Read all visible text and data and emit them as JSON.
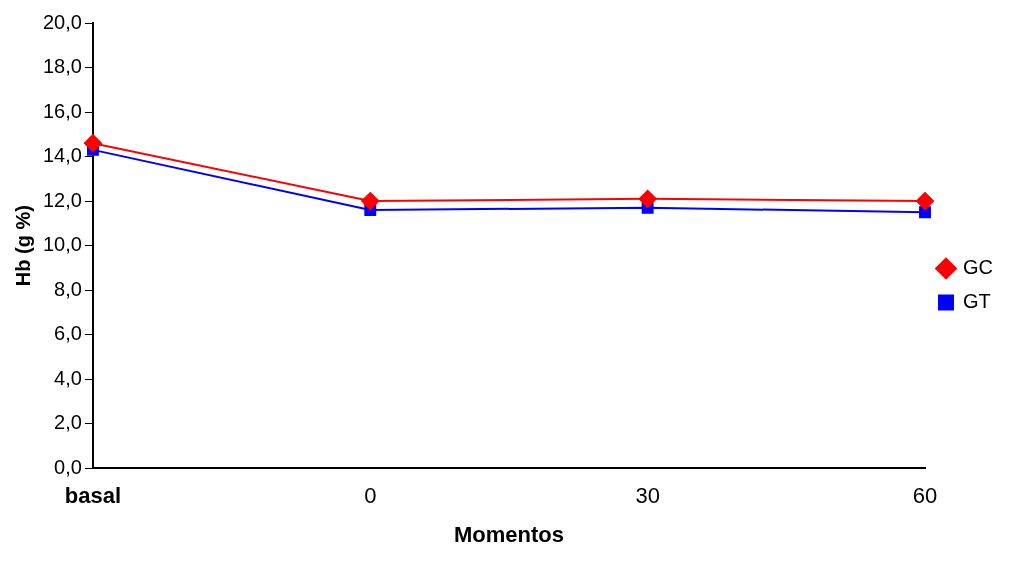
{
  "chart_data": {
    "type": "line",
    "xlabel": "Momentos",
    "ylabel": "Hb (g %)",
    "categories": [
      "basal",
      "0",
      "30",
      "60"
    ],
    "series": [
      {
        "name": "GC",
        "color": "#ff0000",
        "marker": "diamond",
        "values": [
          14.6,
          12.0,
          12.1,
          12.0
        ]
      },
      {
        "name": "GT",
        "color": "#0000ff",
        "marker": "square",
        "values": [
          14.3,
          11.6,
          11.7,
          11.5
        ]
      }
    ],
    "ylim": [
      0,
      20
    ],
    "yticks": [
      {
        "value": 0,
        "label": "0,0"
      },
      {
        "value": 2,
        "label": "2,0"
      },
      {
        "value": 4,
        "label": "4,0"
      },
      {
        "value": 6,
        "label": "6,0"
      },
      {
        "value": 8,
        "label": "8,0"
      },
      {
        "value": 10,
        "label": "10,0"
      },
      {
        "value": 12,
        "label": "12,0"
      },
      {
        "value": 14,
        "label": "14,0"
      },
      {
        "value": 16,
        "label": "16,0"
      },
      {
        "value": 18,
        "label": "18,0"
      },
      {
        "value": 20,
        "label": "20,0"
      }
    ],
    "grid": false,
    "legend": "right",
    "line_style": "solid"
  }
}
